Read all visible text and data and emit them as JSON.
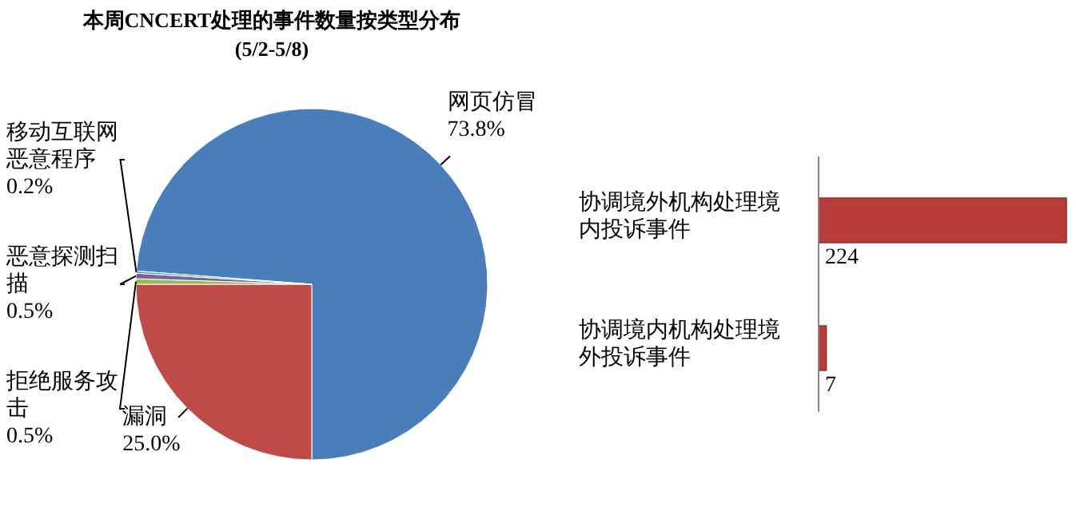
{
  "chart_data": [
    {
      "type": "pie",
      "title": "本周CNCERT处理的事件数量按类型分布",
      "subtitle": "(5/2-5/8)",
      "categories": [
        "网页仿冒",
        "漏洞",
        "拒绝服务攻击",
        "恶意探测扫描",
        "移动互联网恶意程序"
      ],
      "values": [
        73.8,
        25.0,
        0.5,
        0.5,
        0.2
      ],
      "value_labels": [
        "73.8%",
        "25.0%",
        "0.5%",
        "0.5%",
        "0.2%"
      ],
      "colors": [
        "#4a7ebb",
        "#be4b48",
        "#98b954",
        "#7d60a0",
        "#46aac5"
      ]
    },
    {
      "type": "bar",
      "orientation": "horizontal",
      "categories": [
        "协调境外机构处理境内投诉事件",
        "协调境内机构处理境外投诉事件"
      ],
      "values": [
        224,
        7
      ],
      "color": "#b83c39",
      "data_labels": true
    }
  ]
}
